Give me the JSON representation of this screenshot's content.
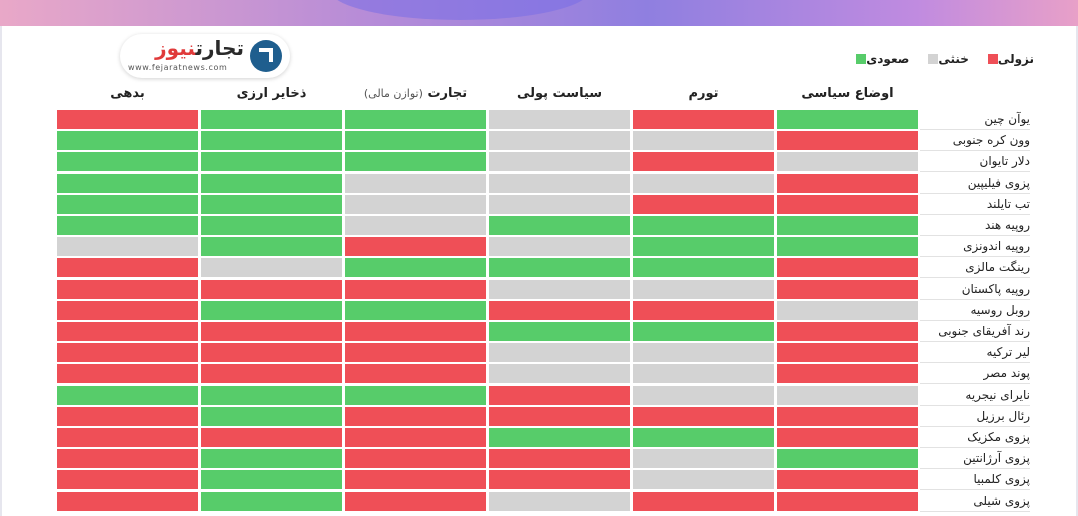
{
  "brand": {
    "name_part1": "تجارت",
    "name_part2": "نیوز",
    "site": "www.fejaratnews.com",
    "icon": "arrow-up-right-icon"
  },
  "legend": [
    {
      "label": "صعودی",
      "color": "#57cc6a"
    },
    {
      "label": "خنثی",
      "color": "#d3d3d3"
    },
    {
      "label": "نزولی",
      "color": "#ef4f57"
    }
  ],
  "columns": [
    {
      "label": "اوضاع سیاسی",
      "sub": ""
    },
    {
      "label": "تورم",
      "sub": ""
    },
    {
      "label": "سیاست پولی",
      "sub": ""
    },
    {
      "label": "تجارت",
      "sub": "(توازن مالی)"
    },
    {
      "label": "ذخایر ارزی",
      "sub": ""
    },
    {
      "label": "بدهی",
      "sub": ""
    }
  ],
  "chart_data": {
    "type": "heatmap",
    "value_legend": {
      "up": "صعودی",
      "neutral": "خنثی",
      "down": "نزولی"
    },
    "columns": [
      "اوضاع سیاسی",
      "تورم",
      "سیاست پولی",
      "تجارت (توازن مالی)",
      "ذخایر ارزی",
      "بدهی"
    ],
    "rows": [
      {
        "name": "یوآن چین",
        "values": [
          "up",
          "down",
          "neutral",
          "up",
          "up",
          "down"
        ]
      },
      {
        "name": "وون کره جنوبی",
        "values": [
          "down",
          "neutral",
          "neutral",
          "up",
          "up",
          "up"
        ]
      },
      {
        "name": "دلار تایوان",
        "values": [
          "neutral",
          "down",
          "neutral",
          "up",
          "up",
          "up"
        ]
      },
      {
        "name": "پزوی فیلیپین",
        "values": [
          "down",
          "neutral",
          "neutral",
          "neutral",
          "up",
          "up"
        ]
      },
      {
        "name": "تب تایلند",
        "values": [
          "down",
          "down",
          "neutral",
          "neutral",
          "up",
          "up"
        ]
      },
      {
        "name": "روپیه هند",
        "values": [
          "up",
          "up",
          "up",
          "neutral",
          "up",
          "up"
        ]
      },
      {
        "name": "روپیه اندونزی",
        "values": [
          "up",
          "up",
          "neutral",
          "down",
          "up",
          "neutral"
        ]
      },
      {
        "name": "رینگت مالزی",
        "values": [
          "down",
          "up",
          "up",
          "up",
          "neutral",
          "down"
        ]
      },
      {
        "name": "روپیه پاکستان",
        "values": [
          "down",
          "neutral",
          "neutral",
          "down",
          "down",
          "down"
        ]
      },
      {
        "name": "روبل روسیه",
        "values": [
          "neutral",
          "down",
          "down",
          "up",
          "up",
          "down"
        ]
      },
      {
        "name": "رند آفریقای جنوبی",
        "values": [
          "down",
          "up",
          "up",
          "down",
          "down",
          "down"
        ]
      },
      {
        "name": "لیر ترکیه",
        "values": [
          "down",
          "neutral",
          "neutral",
          "down",
          "down",
          "down"
        ]
      },
      {
        "name": "پوند مصر",
        "values": [
          "down",
          "neutral",
          "neutral",
          "down",
          "down",
          "down"
        ]
      },
      {
        "name": "نایرای نیجریه",
        "values": [
          "neutral",
          "neutral",
          "down",
          "up",
          "up",
          "up"
        ]
      },
      {
        "name": "رئال برزیل",
        "values": [
          "down",
          "down",
          "down",
          "down",
          "up",
          "down"
        ]
      },
      {
        "name": "پزوی مکزیک",
        "values": [
          "down",
          "up",
          "up",
          "down",
          "down",
          "down"
        ]
      },
      {
        "name": "پزوی آرژانتین",
        "values": [
          "up",
          "neutral",
          "down",
          "down",
          "up",
          "down"
        ]
      },
      {
        "name": "پزوی کلمبیا",
        "values": [
          "down",
          "neutral",
          "down",
          "down",
          "up",
          "down"
        ]
      },
      {
        "name": "پزوی شیلی",
        "values": [
          "down",
          "down",
          "neutral",
          "down",
          "up",
          "down"
        ]
      }
    ]
  }
}
